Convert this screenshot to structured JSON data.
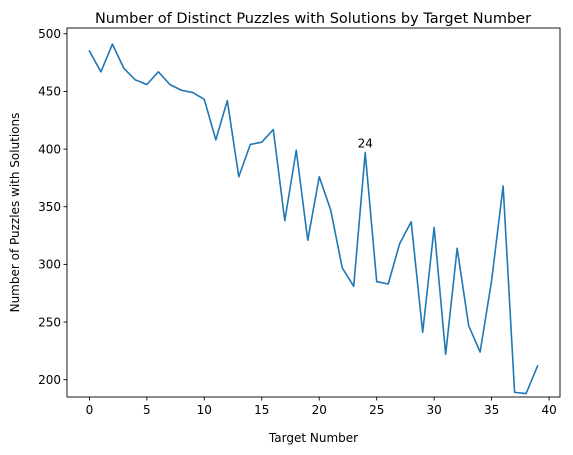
{
  "chart_data": {
    "type": "line",
    "title": "Number of Distinct Puzzles with Solutions by Target Number",
    "xlabel": "Target Number",
    "ylabel": "Number of Puzzles with Solutions",
    "xlim": [
      -1.95,
      40.95
    ],
    "ylim": [
      185,
      505
    ],
    "xticks": [
      0,
      5,
      10,
      15,
      20,
      25,
      30,
      35,
      40
    ],
    "yticks": [
      200,
      250,
      300,
      350,
      400,
      450,
      500
    ],
    "grid": false,
    "series_color": "#1f77b4",
    "x": [
      0,
      1,
      2,
      3,
      4,
      5,
      6,
      7,
      8,
      9,
      10,
      11,
      12,
      13,
      14,
      15,
      16,
      17,
      18,
      19,
      20,
      21,
      22,
      23,
      24,
      25,
      26,
      27,
      28,
      29,
      30,
      31,
      32,
      33,
      34,
      35,
      36,
      37,
      38,
      39
    ],
    "values": [
      485,
      467,
      491,
      470,
      460,
      456,
      467,
      456,
      451,
      449,
      443,
      408,
      442,
      376,
      404,
      406,
      417,
      338,
      399,
      321,
      376,
      347,
      297,
      281,
      397,
      285,
      283,
      318,
      337,
      241,
      332,
      222,
      314,
      247,
      224,
      286,
      368,
      189,
      188,
      212
    ],
    "annotations": [
      {
        "text": "24",
        "x": 24,
        "y": 397
      }
    ]
  }
}
